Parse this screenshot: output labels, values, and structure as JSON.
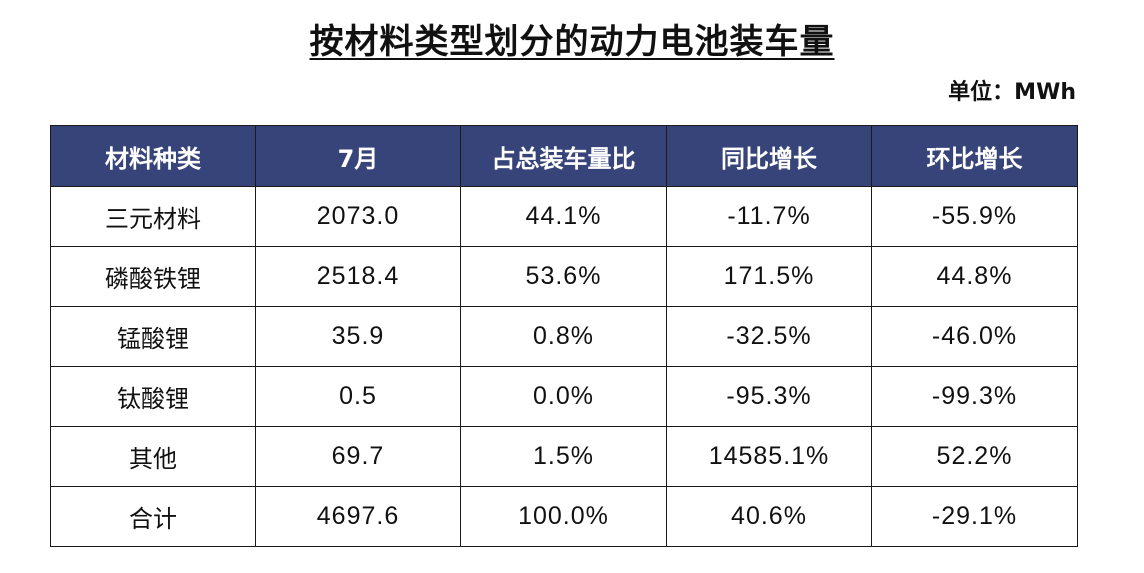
{
  "title": "按材料类型划分的动力电池装车量",
  "unit": "单位：MWh",
  "table": {
    "headers": [
      "材料种类",
      "7月",
      "占总装车量比",
      "同比增长",
      "环比增长"
    ],
    "rows": [
      [
        "三元材料",
        "2073.0",
        "44.1%",
        "-11.7%",
        "-55.9%"
      ],
      [
        "磷酸铁锂",
        "2518.4",
        "53.6%",
        "171.5%",
        "44.8%"
      ],
      [
        "锰酸锂",
        "35.9",
        "0.8%",
        "-32.5%",
        "-46.0%"
      ],
      [
        "钛酸锂",
        "0.5",
        "0.0%",
        "-95.3%",
        "-99.3%"
      ],
      [
        "其他",
        "69.7",
        "1.5%",
        "14585.1%",
        "52.2%"
      ],
      [
        "合计",
        "4697.6",
        "100.0%",
        "40.6%",
        "-29.1%"
      ]
    ]
  },
  "colors": {
    "header_bg": "#37447a",
    "header_text": "#ffffff",
    "border": "#1a1a1a"
  }
}
